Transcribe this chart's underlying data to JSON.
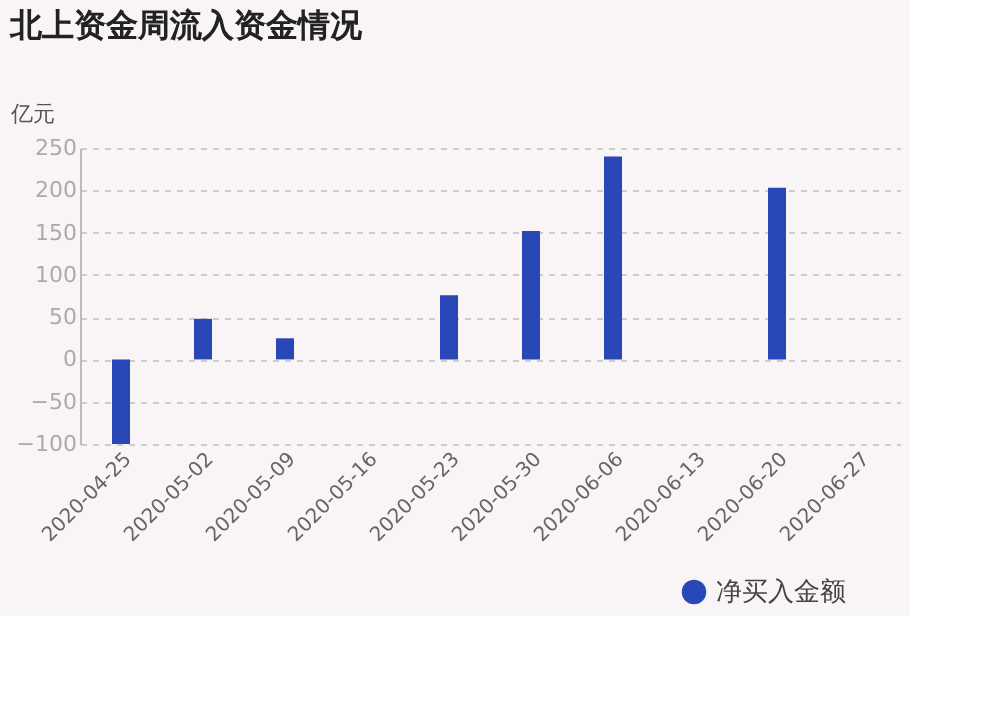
{
  "chart_data": {
    "type": "bar",
    "title": "北上资金周流入资金情况",
    "ylabel": "亿元",
    "categories": [
      "2020-04-25",
      "2020-05-02",
      "2020-05-09",
      "2020-05-16",
      "2020-05-23",
      "2020-05-30",
      "2020-06-06",
      "2020-06-13",
      "2020-06-20",
      "2020-06-27"
    ],
    "series": [
      {
        "name": "净买入金额",
        "color": "#2a47b8",
        "values": [
          -100,
          48,
          25,
          null,
          76,
          152,
          240,
          null,
          203,
          null
        ]
      }
    ],
    "ylim": [
      -100,
      250
    ],
    "yticks": [
      -100,
      -50,
      0,
      50,
      100,
      150,
      200,
      250
    ],
    "grid": "y",
    "legend": "bottom right"
  }
}
